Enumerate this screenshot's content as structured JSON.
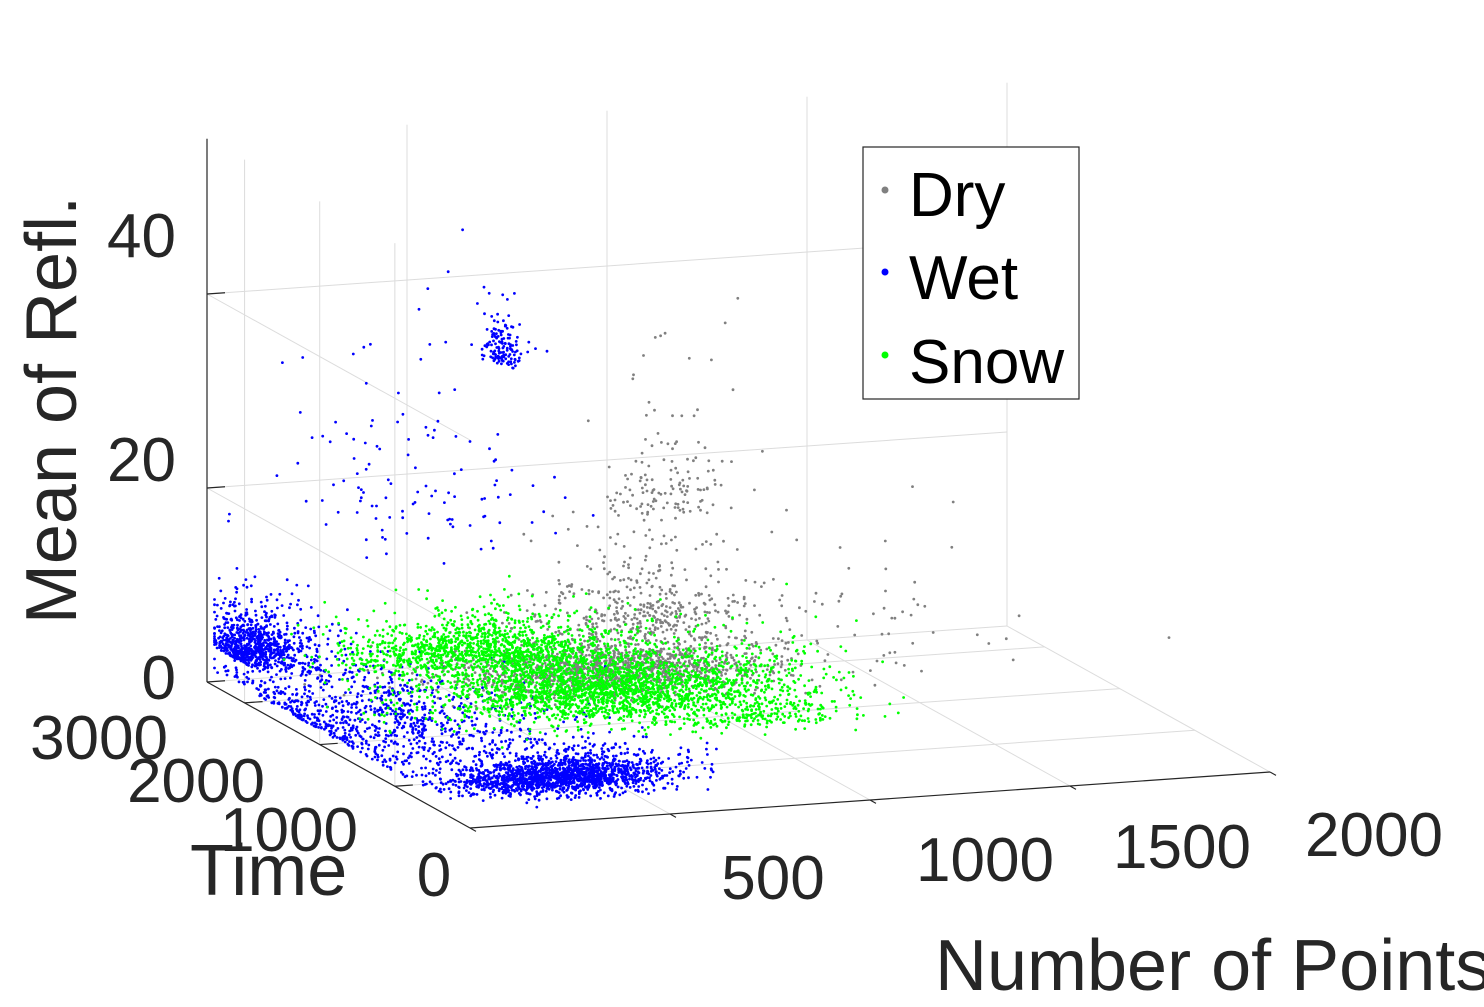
{
  "chart_data": {
    "type": "scatter",
    "dimensions": 3,
    "title": "",
    "xlabel": "Number of Points",
    "ylabel": "Time",
    "zlabel": "Mean of Refl.",
    "xlim": [
      0,
      2000
    ],
    "ylim": [
      0,
      3000
    ],
    "zlim": [
      0,
      48
    ],
    "x_ticks": [
      "0",
      "500",
      "1000",
      "1500",
      "2000"
    ],
    "y_ticks": [
      "1000",
      "2000",
      "3000"
    ],
    "z_ticks": [
      "0",
      "20",
      "40"
    ],
    "grid": true,
    "legend_position": "top-right",
    "series": [
      {
        "name": "Dry",
        "color": "#808080",
        "clusters": [
          {
            "x": 700,
            "y": 1900,
            "z": 5,
            "sx": 210,
            "sy": 260,
            "sz": 2.5,
            "n": 1400
          },
          {
            "x": 880,
            "y": 2300,
            "z": 8,
            "sx": 130,
            "sy": 200,
            "sz": 6,
            "n": 350
          },
          {
            "x": 1000,
            "y": 2700,
            "z": 18,
            "sx": 90,
            "sy": 120,
            "sz": 8,
            "n": 130
          },
          {
            "x": 1300,
            "y": 1800,
            "z": 8,
            "sx": 250,
            "sy": 500,
            "sz": 5,
            "n": 60
          }
        ]
      },
      {
        "name": "Wet",
        "color": "#0000ff",
        "clusters": [
          {
            "x": 300,
            "y": 400,
            "z": 2,
            "sx": 130,
            "sy": 170,
            "sz": 1.5,
            "n": 1700
          },
          {
            "x": 30,
            "y": 3100,
            "z": 4,
            "sx": 45,
            "sy": 180,
            "sz": 2.5,
            "n": 650
          },
          {
            "x": 150,
            "y": 2000,
            "z": 1.5,
            "sx": 190,
            "sy": 650,
            "sz": 1.5,
            "n": 950
          },
          {
            "x": 530,
            "y": 2400,
            "z": 36,
            "sx": 18,
            "sy": 90,
            "sz": 3.5,
            "n": 140
          },
          {
            "x": 350,
            "y": 2700,
            "z": 18,
            "sx": 160,
            "sy": 450,
            "sz": 11,
            "n": 120
          },
          {
            "x": 60,
            "y": 2800,
            "z": 6,
            "sx": 60,
            "sy": 500,
            "sz": 4,
            "n": 220
          }
        ]
      },
      {
        "name": "Snow",
        "color": "#00ff00",
        "clusters": [
          {
            "x": 650,
            "y": 1650,
            "z": 4,
            "sx": 220,
            "sy": 300,
            "sz": 3,
            "n": 2300
          },
          {
            "x": 450,
            "y": 2300,
            "z": 6,
            "sx": 160,
            "sy": 220,
            "sz": 2.5,
            "n": 1200
          },
          {
            "x": 950,
            "y": 1200,
            "z": 3,
            "sx": 120,
            "sy": 120,
            "sz": 2,
            "n": 220
          }
        ]
      }
    ]
  }
}
